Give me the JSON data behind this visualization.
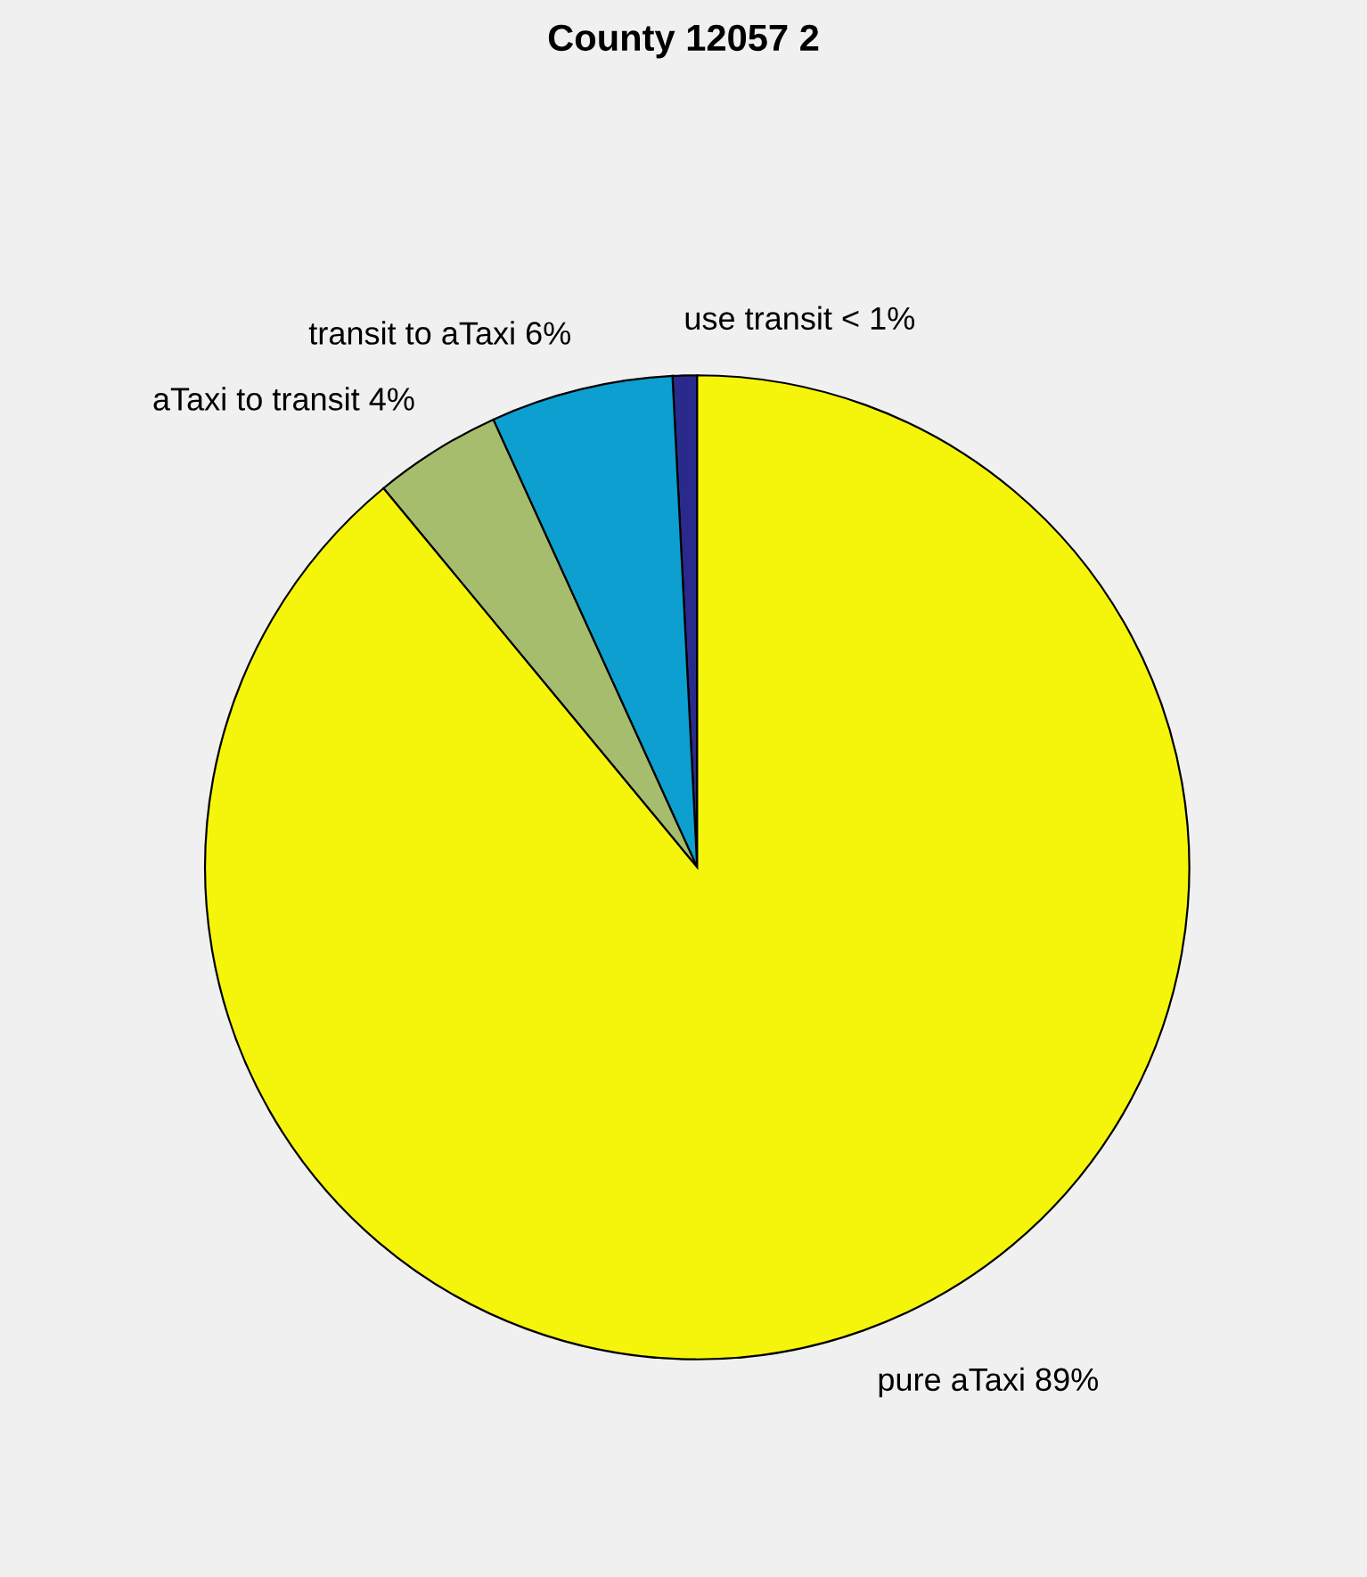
{
  "chart_data": {
    "type": "pie",
    "title": "County 12057 2",
    "categories": [
      "use transit",
      "transit to aTaxi",
      "aTaxi to transit",
      "pure aTaxi"
    ],
    "values": [
      0.8,
      6.0,
      4.2,
      89.0
    ],
    "value_labels": [
      "< 1%",
      "6%",
      "4%",
      "89%"
    ],
    "colors": [
      "#2a2a8c",
      "#0c9fd0",
      "#a6bd6d",
      "#f5f50c"
    ],
    "legend": false
  }
}
